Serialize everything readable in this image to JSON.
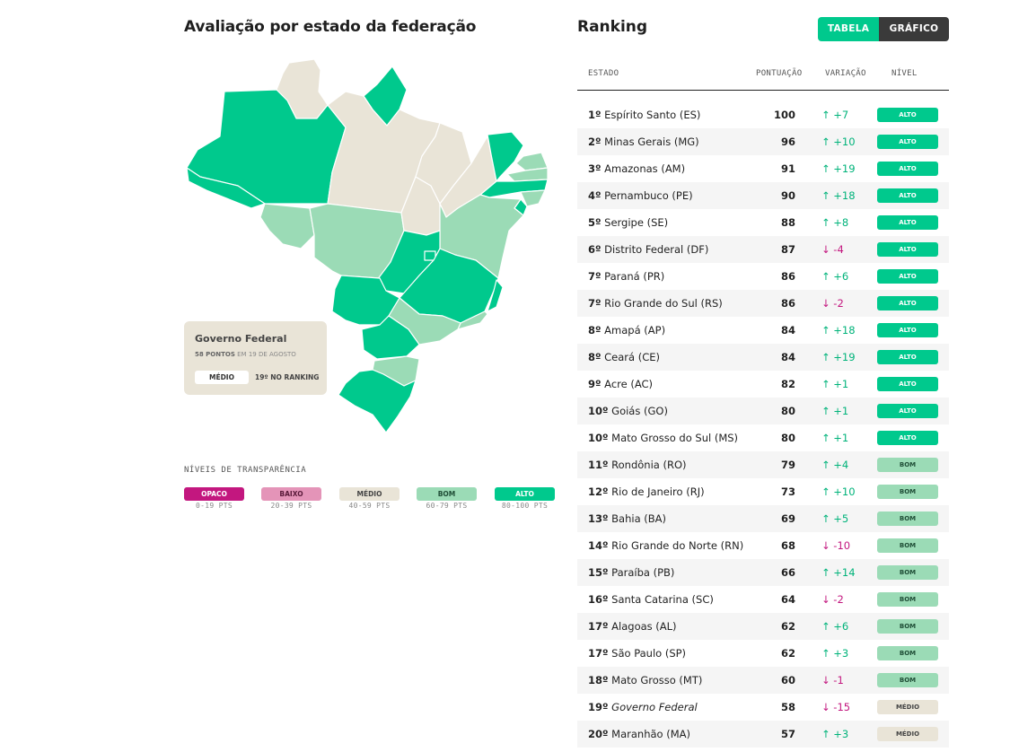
{
  "left": {
    "title": "Avaliação por estado da federação",
    "federal": {
      "name": "Governo Federal",
      "points": "58 PONTOS",
      "date": "EM 19 DE AGOSTO",
      "level": "MÉDIO",
      "ranking": "19º NO RANKING"
    },
    "legend_title": "NÍVEIS DE TRANSPARÊNCIA",
    "legend": [
      {
        "label": "OPACO",
        "range": "0-19 PTS",
        "color": "#c3177f",
        "text_color": "#ffffff"
      },
      {
        "label": "BAIXO",
        "range": "20-39 PTS",
        "color": "#e494b8",
        "text_color": "#5a1a3a"
      },
      {
        "label": "MÉDIO",
        "range": "40-59 PTS",
        "color": "#e9e4d7",
        "text_color": "#444444"
      },
      {
        "label": "BOM",
        "range": "60-79 PTS",
        "color": "#9bdbb6",
        "text_color": "#1f4d36"
      },
      {
        "label": "ALTO",
        "range": "80-100 PTS",
        "color": "#00c98d",
        "text_color": "#ffffff"
      }
    ]
  },
  "right": {
    "title": "Ranking",
    "tabs": {
      "tabela": "TABELA",
      "grafico": "GRÁFICO"
    },
    "headers": {
      "estado": "ESTADO",
      "pontuacao": "PONTUAÇÃO",
      "variacao": "VARIAÇÃO",
      "nivel": "NÍVEL"
    },
    "rows": [
      {
        "pos": "1º",
        "name": "Espírito Santo (ES)",
        "score": "100",
        "var": "+7",
        "dir": "up",
        "level": "ALTO"
      },
      {
        "pos": "2º",
        "name": "Minas Gerais (MG)",
        "score": "96",
        "var": "+10",
        "dir": "up",
        "level": "ALTO"
      },
      {
        "pos": "3º",
        "name": "Amazonas (AM)",
        "score": "91",
        "var": "+19",
        "dir": "up",
        "level": "ALTO"
      },
      {
        "pos": "4º",
        "name": "Pernambuco (PE)",
        "score": "90",
        "var": "+18",
        "dir": "up",
        "level": "ALTO"
      },
      {
        "pos": "5º",
        "name": "Sergipe (SE)",
        "score": "88",
        "var": "+8",
        "dir": "up",
        "level": "ALTO"
      },
      {
        "pos": "6º",
        "name": "Distrito Federal (DF)",
        "score": "87",
        "var": "-4",
        "dir": "down",
        "level": "ALTO"
      },
      {
        "pos": "7º",
        "name": "Paraná (PR)",
        "score": "86",
        "var": "+6",
        "dir": "up",
        "level": "ALTO"
      },
      {
        "pos": "7º",
        "name": "Rio Grande do Sul (RS)",
        "score": "86",
        "var": "-2",
        "dir": "down",
        "level": "ALTO"
      },
      {
        "pos": "8º",
        "name": "Amapá (AP)",
        "score": "84",
        "var": "+18",
        "dir": "up",
        "level": "ALTO"
      },
      {
        "pos": "8º",
        "name": "Ceará (CE)",
        "score": "84",
        "var": "+19",
        "dir": "up",
        "level": "ALTO"
      },
      {
        "pos": "9º",
        "name": "Acre (AC)",
        "score": "82",
        "var": "+1",
        "dir": "up",
        "level": "ALTO"
      },
      {
        "pos": "10º",
        "name": "Goiás (GO)",
        "score": "80",
        "var": "+1",
        "dir": "up",
        "level": "ALTO"
      },
      {
        "pos": "10º",
        "name": "Mato Grosso do Sul (MS)",
        "score": "80",
        "var": "+1",
        "dir": "up",
        "level": "ALTO"
      },
      {
        "pos": "11º",
        "name": "Rondônia (RO)",
        "score": "79",
        "var": "+4",
        "dir": "up",
        "level": "BOM"
      },
      {
        "pos": "12º",
        "name": "Rio de Janeiro (RJ)",
        "score": "73",
        "var": "+10",
        "dir": "up",
        "level": "BOM"
      },
      {
        "pos": "13º",
        "name": "Bahia (BA)",
        "score": "69",
        "var": "+5",
        "dir": "up",
        "level": "BOM"
      },
      {
        "pos": "14º",
        "name": "Rio Grande do Norte (RN)",
        "score": "68",
        "var": "-10",
        "dir": "down",
        "level": "BOM"
      },
      {
        "pos": "15º",
        "name": "Paraíba (PB)",
        "score": "66",
        "var": "+14",
        "dir": "up",
        "level": "BOM"
      },
      {
        "pos": "16º",
        "name": "Santa Catarina (SC)",
        "score": "64",
        "var": "-2",
        "dir": "down",
        "level": "BOM"
      },
      {
        "pos": "17º",
        "name": "Alagoas (AL)",
        "score": "62",
        "var": "+6",
        "dir": "up",
        "level": "BOM"
      },
      {
        "pos": "17º",
        "name": "São Paulo (SP)",
        "score": "62",
        "var": "+3",
        "dir": "up",
        "level": "BOM"
      },
      {
        "pos": "18º",
        "name": "Mato Grosso (MT)",
        "score": "60",
        "var": "-1",
        "dir": "down",
        "level": "BOM"
      },
      {
        "pos": "19º",
        "name": "Governo Federal",
        "score": "58",
        "var": "-15",
        "dir": "down",
        "level": "MÉDIO",
        "italic": true
      },
      {
        "pos": "20º",
        "name": "Maranhão (MA)",
        "score": "57",
        "var": "+3",
        "dir": "up",
        "level": "MÉDIO"
      }
    ]
  },
  "colors": {
    "alto": "#00c98d",
    "bom": "#9bdbb6",
    "medio": "#e9e4d7",
    "baixo": "#e494b8",
    "opaco": "#c3177f",
    "up": "#00b37a",
    "down": "#c3177f"
  }
}
